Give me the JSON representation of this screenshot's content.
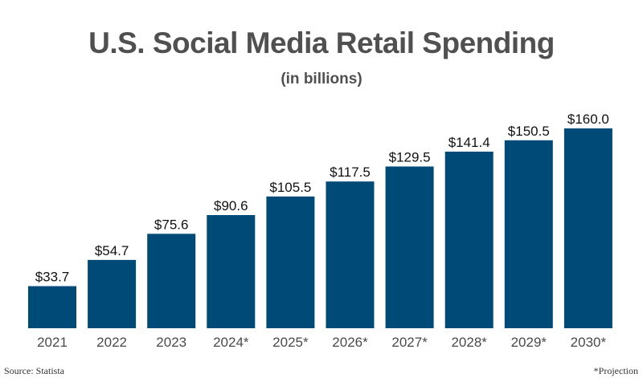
{
  "chart_data": {
    "type": "bar",
    "title": "U.S. Social Media Retail Spending",
    "subtitle": "(in billions)",
    "categories": [
      "2021",
      "2022",
      "2023",
      "2024*",
      "2025*",
      "2026*",
      "2027*",
      "2028*",
      "2029*",
      "2030*"
    ],
    "values": [
      33.7,
      54.7,
      75.6,
      90.6,
      105.5,
      117.5,
      129.5,
      141.4,
      150.5,
      160.0
    ],
    "data_labels": [
      "$33.7",
      "$54.7",
      "$75.6",
      "$90.6",
      "$105.5",
      "$117.5",
      "$129.5",
      "$141.4",
      "$150.5",
      "$160.0"
    ],
    "xlabel": "",
    "ylabel": "",
    "ylim": [
      0,
      160
    ],
    "grid": false,
    "bar_color": "#004a77",
    "source": "Source: Statista",
    "footnote": "*Projection"
  }
}
